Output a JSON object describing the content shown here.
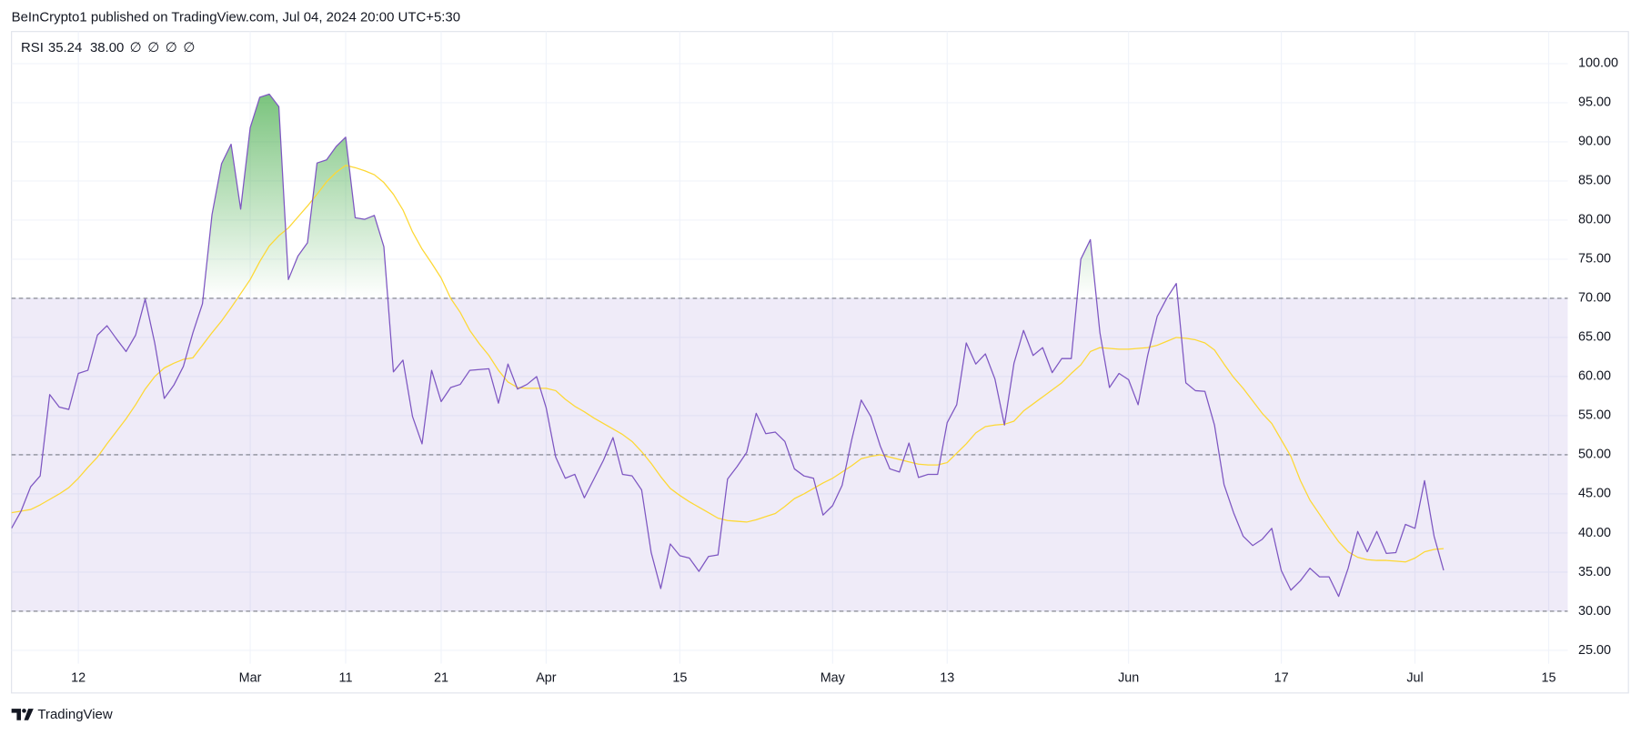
{
  "header": "BeInCrypto1 published on TradingView.com, Jul 04, 2024 20:00 UTC+5:30",
  "footer": "TradingView",
  "chart_data": {
    "type": "line",
    "indicator": "RSI",
    "legend_values": [
      "35.24",
      "38.00"
    ],
    "indicator_flags": [
      "∅",
      "∅",
      "∅",
      "∅"
    ],
    "x": [
      "Feb 5",
      "Feb 6",
      "Feb 7",
      "Feb 8",
      "Feb 9",
      "Feb 10",
      "Feb 11",
      "Feb 12",
      "Feb 13",
      "Feb 14",
      "Feb 15",
      "Feb 16",
      "Feb 17",
      "Feb 18",
      "Feb 19",
      "Feb 20",
      "Feb 21",
      "Feb 22",
      "Feb 23",
      "Feb 24",
      "Feb 25",
      "Feb 26",
      "Feb 27",
      "Feb 28",
      "Feb 29",
      "Mar 1",
      "Mar 2",
      "Mar 3",
      "Mar 4",
      "Mar 5",
      "Mar 6",
      "Mar 7",
      "Mar 8",
      "Mar 9",
      "Mar 10",
      "Mar 11",
      "Mar 12",
      "Mar 13",
      "Mar 14",
      "Mar 15",
      "Mar 16",
      "Mar 17",
      "Mar 18",
      "Mar 19",
      "Mar 20",
      "Mar 21",
      "Mar 22",
      "Mar 23",
      "Mar 24",
      "Mar 25",
      "Mar 26",
      "Mar 27",
      "Mar 28",
      "Mar 29",
      "Mar 30",
      "Mar 31",
      "Apr 1",
      "Apr 2",
      "Apr 3",
      "Apr 4",
      "Apr 5",
      "Apr 6",
      "Apr 7",
      "Apr 8",
      "Apr 9",
      "Apr 10",
      "Apr 11",
      "Apr 12",
      "Apr 13",
      "Apr 14",
      "Apr 15",
      "Apr 16",
      "Apr 17",
      "Apr 18",
      "Apr 19",
      "Apr 20",
      "Apr 21",
      "Apr 22",
      "Apr 23",
      "Apr 24",
      "Apr 25",
      "Apr 26",
      "Apr 27",
      "Apr 28",
      "Apr 29",
      "Apr 30",
      "May 1",
      "May 2",
      "May 3",
      "May 4",
      "May 5",
      "May 6",
      "May 7",
      "May 8",
      "May 9",
      "May 10",
      "May 11",
      "May 12",
      "May 13",
      "May 14",
      "May 15",
      "May 16",
      "May 17",
      "May 18",
      "May 19",
      "May 20",
      "May 21",
      "May 22",
      "May 23",
      "May 24",
      "May 25",
      "May 26",
      "May 27",
      "May 28",
      "May 29",
      "May 30",
      "May 31",
      "Jun 1",
      "Jun 2",
      "Jun 3",
      "Jun 4",
      "Jun 5",
      "Jun 6",
      "Jun 7",
      "Jun 8",
      "Jun 9",
      "Jun 10",
      "Jun 11",
      "Jun 12",
      "Jun 13",
      "Jun 14",
      "Jun 15",
      "Jun 16",
      "Jun 17",
      "Jun 18",
      "Jun 19",
      "Jun 20",
      "Jun 21",
      "Jun 22",
      "Jun 23",
      "Jun 24",
      "Jun 25",
      "Jun 26",
      "Jun 27",
      "Jun 28",
      "Jun 29",
      "Jun 30",
      "Jul 1",
      "Jul 2",
      "Jul 3",
      "Jul 4"
    ],
    "series": [
      {
        "name": "RSI",
        "color": "#7e57c2",
        "values": [
          40.6,
          42.8,
          45.9,
          47.3,
          57.7,
          56.1,
          55.8,
          60.4,
          60.8,
          65.3,
          66.5,
          64.8,
          63.2,
          65.3,
          69.9,
          64.3,
          57.2,
          58.9,
          61.3,
          65.6,
          69.3,
          80.7,
          87.2,
          89.7,
          81.4,
          91.8,
          95.7,
          96.1,
          94.5,
          72.4,
          75.4,
          77.1,
          87.3,
          87.7,
          89.4,
          90.6,
          80.3,
          80.1,
          80.6,
          76.6,
          60.6,
          62.1,
          54.9,
          51.4,
          60.8,
          56.8,
          58.6,
          59.0,
          60.8,
          60.9,
          61.0,
          56.6,
          61.6,
          58.4,
          59.0,
          60.0,
          56.0,
          49.7,
          47.0,
          47.5,
          44.5,
          46.9,
          49.3,
          52.2,
          47.5,
          47.3,
          45.5,
          37.5,
          32.9,
          38.6,
          37.1,
          36.8,
          35.1,
          37.0,
          37.2,
          46.9,
          48.5,
          50.3,
          55.3,
          52.7,
          52.9,
          51.7,
          48.2,
          47.3,
          47.0,
          42.3,
          43.5,
          46.1,
          51.9,
          57.0,
          54.9,
          51.1,
          48.2,
          47.8,
          51.5,
          47.1,
          47.5,
          47.5,
          54.1,
          56.4,
          64.3,
          61.6,
          62.9,
          59.7,
          53.8,
          61.7,
          65.9,
          62.7,
          63.7,
          60.5,
          62.3,
          62.3,
          75.0,
          77.5,
          65.6,
          58.6,
          60.4,
          59.6,
          56.4,
          62.7,
          67.7,
          70.0,
          71.9,
          59.2,
          58.2,
          58.1,
          53.8,
          46.2,
          42.6,
          39.6,
          38.4,
          39.2,
          40.6,
          35.2,
          32.7,
          33.9,
          35.5,
          34.4,
          34.4,
          31.9,
          35.5,
          40.2,
          37.6,
          40.2,
          37.4,
          37.5,
          41.1,
          40.6,
          46.7,
          39.6,
          35.24
        ]
      },
      {
        "color": "#fdd835",
        "values": [
          42.6,
          42.8,
          43.0,
          43.6,
          44.3,
          45.0,
          45.8,
          47.0,
          48.4,
          49.7,
          51.4,
          53.0,
          54.6,
          56.4,
          58.4,
          60.0,
          61.1,
          61.7,
          62.2,
          62.4,
          64.0,
          65.6,
          67.1,
          68.8,
          70.6,
          72.4,
          74.7,
          76.7,
          78.0,
          79.0,
          80.4,
          81.8,
          83.3,
          84.9,
          86.1,
          87.0,
          86.7,
          86.3,
          85.8,
          84.8,
          83.3,
          81.3,
          78.5,
          76.3,
          74.5,
          72.6,
          70.0,
          68.2,
          65.9,
          64.2,
          62.7,
          60.8,
          59.3,
          58.6,
          58.5,
          58.5,
          58.5,
          58.2,
          57.1,
          56.2,
          55.5,
          54.7,
          54.0,
          53.3,
          52.6,
          51.7,
          50.4,
          48.9,
          47.2,
          45.7,
          44.8,
          44.0,
          43.3,
          42.6,
          41.9,
          41.6,
          41.5,
          41.4,
          41.7,
          42.1,
          42.5,
          43.4,
          44.4,
          45.0,
          45.7,
          46.4,
          47.0,
          47.8,
          48.6,
          49.5,
          49.8,
          50.0,
          49.7,
          49.4,
          49.1,
          48.8,
          48.7,
          48.7,
          49.0,
          50.2,
          51.4,
          52.8,
          53.6,
          53.8,
          53.9,
          54.3,
          55.6,
          56.5,
          57.4,
          58.3,
          59.2,
          60.4,
          61.5,
          63.2,
          63.7,
          63.6,
          63.5,
          63.5,
          63.6,
          63.7,
          64.0,
          64.5,
          65.0,
          64.9,
          64.7,
          64.3,
          63.4,
          61.6,
          59.9,
          58.5,
          56.9,
          55.3,
          54.0,
          51.9,
          49.8,
          46.7,
          44.2,
          42.4,
          40.6,
          38.9,
          37.6,
          36.9,
          36.6,
          36.5,
          36.5,
          36.4,
          36.3,
          36.8,
          37.6,
          37.9,
          38.0
        ]
      }
    ],
    "bands": {
      "upper": 70,
      "middle": 50,
      "lower": 30,
      "fill": "#7e57c2",
      "line_color": "#787b86"
    },
    "overbought_fill": "#4caf50",
    "xlim": [
      "Feb 5",
      "Jul 17"
    ],
    "xticks": [
      {
        "value": "Feb 12",
        "label": "12"
      },
      {
        "value": "Mar 1",
        "label": "Mar"
      },
      {
        "value": "Mar 11",
        "label": "11"
      },
      {
        "value": "Mar 21",
        "label": "21"
      },
      {
        "value": "Apr 1",
        "label": "Apr"
      },
      {
        "value": "Apr 15",
        "label": "15"
      },
      {
        "value": "May 1",
        "label": "May"
      },
      {
        "value": "May 13",
        "label": "13"
      },
      {
        "value": "Jun 1",
        "label": "Jun"
      },
      {
        "value": "Jun 17",
        "label": "17"
      },
      {
        "value": "Jul 1",
        "label": "Jul"
      },
      {
        "value": "Jul 15",
        "label": "15"
      }
    ],
    "ylim": [
      23.3,
      104.1
    ],
    "yticks": [
      {
        "value": 25,
        "label": "25.00"
      },
      {
        "value": 30,
        "label": "30.00"
      },
      {
        "value": 35,
        "label": "35.00"
      },
      {
        "value": 40,
        "label": "40.00"
      },
      {
        "value": 45,
        "label": "45.00"
      },
      {
        "value": 50,
        "label": "50.00"
      },
      {
        "value": 55,
        "label": "55.00"
      },
      {
        "value": 60,
        "label": "60.00"
      },
      {
        "value": 65,
        "label": "65.00"
      },
      {
        "value": 70,
        "label": "70.00"
      },
      {
        "value": 75,
        "label": "75.00"
      },
      {
        "value": 80,
        "label": "80.00"
      },
      {
        "value": 85,
        "label": "85.00"
      },
      {
        "value": 90,
        "label": "90.00"
      },
      {
        "value": 95,
        "label": "95.00"
      },
      {
        "value": 100,
        "label": "100.00"
      }
    ],
    "grid": true
  }
}
